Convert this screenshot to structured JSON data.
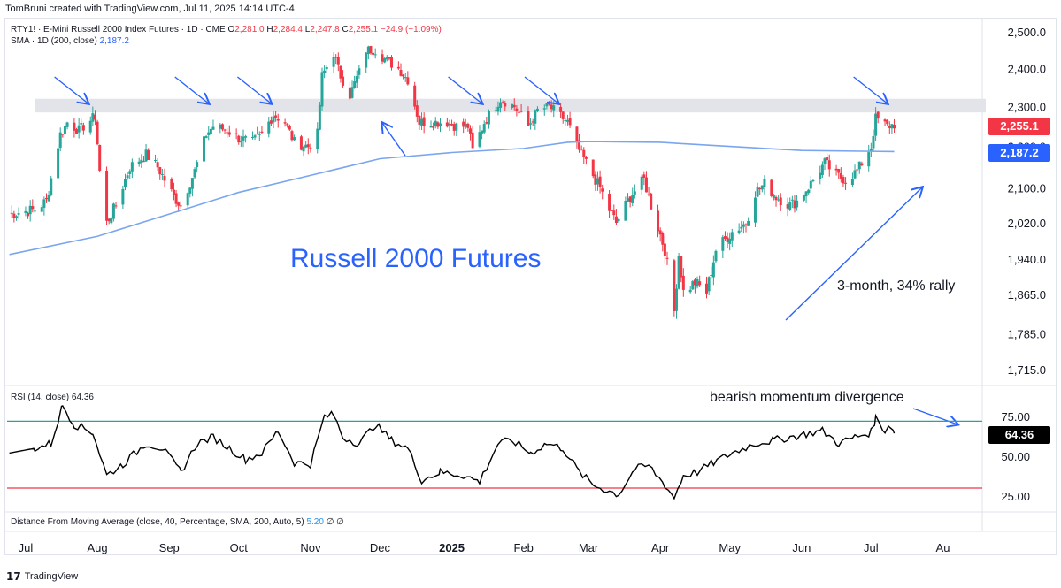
{
  "header": {
    "credit": "TomBruni created with TradingView.com, Jul 11, 2025 14:14 UTC-4"
  },
  "legend": {
    "symbol": "RTY1! · E-Mini Russell 2000 Index Futures · 1D · CME",
    "o_label": "O",
    "o": "2,281.0",
    "h_label": "H",
    "h": "2,284.4",
    "l_label": "L",
    "l": "2,247.8",
    "c_label": "C",
    "c": "2,255.1",
    "change": "−24.9 (−1.09%)",
    "sma_label": "SMA · 1D (200, close)",
    "sma_value": "2,187.2",
    "rsi_label": "RSI (14, close)",
    "rsi_value": "64.36",
    "dma_label": "Distance From Moving Average (close, 40, Percentage, SMA, 200, Auto, 5)",
    "dma_value": "5.20",
    "dma_extra": "∅ ∅"
  },
  "price_tags": {
    "last": "2,255.1",
    "sma": "2,187.2",
    "rsi": "64.36"
  },
  "annotations": {
    "title": "Russell 2000 Futures",
    "rally": "3-month, 34% rally",
    "divergence": "bearish momentum divergence"
  },
  "footer": {
    "brand": "TradingView"
  },
  "colors": {
    "up": "#26a69a",
    "down": "#f23645",
    "sma": "#7aa5f0",
    "rsi_line": "#000000",
    "rsi_upper": "#26a69a",
    "rsi_lower": "#f23645",
    "annotation": "#2962ff",
    "resistance_band": "#e3e4ea"
  },
  "chart_data": [
    {
      "type": "candlestick",
      "title": "",
      "y_ticks": [
        "2,500.0",
        "2,400.0",
        "2,300.0",
        "2,200.0",
        "2,100.0",
        "2,020.0",
        "1,940.0",
        "1,865.0",
        "1,785.0",
        "1,715.0"
      ],
      "y_tick_values": [
        2500,
        2400,
        2300,
        2200,
        2100,
        2020,
        1940,
        1865,
        1785,
        1715
      ],
      "ylim": [
        1705,
        2525
      ],
      "x_ticks": [
        "Jul",
        "Aug",
        "Sep",
        "Oct",
        "Nov",
        "Dec",
        "2025",
        "Feb",
        "Mar",
        "Apr",
        "May",
        "Jun",
        "Jul",
        "Au"
      ],
      "x_tick_dates": [
        "2024-07-01",
        "2024-08-01",
        "2024-09-01",
        "2024-10-01",
        "2024-11-01",
        "2024-12-01",
        "2025-01-01",
        "2025-02-01",
        "2025-03-01",
        "2025-04-01",
        "2025-05-01",
        "2025-06-01",
        "2025-07-01",
        "2025-08-01"
      ],
      "bold_ticks": [
        "2025"
      ],
      "xlim": [
        "2024-06-23",
        "2025-08-18"
      ],
      "resistance_zone": [
        2285,
        2320
      ],
      "close_points": [
        [
          "2024-06-24",
          2040
        ],
        [
          "2024-07-05",
          2050
        ],
        [
          "2024-07-10",
          2070
        ],
        [
          "2024-07-16",
          2230
        ],
        [
          "2024-07-19",
          2260
        ],
        [
          "2024-07-24",
          2240
        ],
        [
          "2024-07-31",
          2275
        ],
        [
          "2024-08-02",
          2140
        ],
        [
          "2024-08-05",
          2020
        ],
        [
          "2024-08-09",
          2060
        ],
        [
          "2024-08-15",
          2150
        ],
        [
          "2024-08-22",
          2180
        ],
        [
          "2024-08-27",
          2150
        ],
        [
          "2024-09-03",
          2080
        ],
        [
          "2024-09-06",
          2060
        ],
        [
          "2024-09-12",
          2140
        ],
        [
          "2024-09-17",
          2230
        ],
        [
          "2024-09-20",
          2250
        ],
        [
          "2024-09-26",
          2240
        ],
        [
          "2024-10-01",
          2220
        ],
        [
          "2024-10-07",
          2210
        ],
        [
          "2024-10-11",
          2230
        ],
        [
          "2024-10-16",
          2280
        ],
        [
          "2024-10-21",
          2260
        ],
        [
          "2024-10-25",
          2210
        ],
        [
          "2024-10-31",
          2200
        ],
        [
          "2024-11-04",
          2230
        ],
        [
          "2024-11-06",
          2380
        ],
        [
          "2024-11-11",
          2440
        ],
        [
          "2024-11-14",
          2380
        ],
        [
          "2024-11-18",
          2330
        ],
        [
          "2024-11-22",
          2390
        ],
        [
          "2024-11-25",
          2450
        ],
        [
          "2024-11-29",
          2450
        ],
        [
          "2024-12-04",
          2420
        ],
        [
          "2024-12-09",
          2400
        ],
        [
          "2024-12-13",
          2370
        ],
        [
          "2024-12-18",
          2260
        ],
        [
          "2024-12-23",
          2260
        ],
        [
          "2024-12-30",
          2260
        ],
        [
          "2025-01-03",
          2250
        ],
        [
          "2025-01-08",
          2250
        ],
        [
          "2025-01-10",
          2190
        ],
        [
          "2025-01-15",
          2260
        ],
        [
          "2025-01-22",
          2320
        ],
        [
          "2025-01-28",
          2300
        ],
        [
          "2025-02-03",
          2250
        ],
        [
          "2025-02-07",
          2290
        ],
        [
          "2025-02-12",
          2300
        ],
        [
          "2025-02-14",
          2290
        ],
        [
          "2025-02-20",
          2260
        ],
        [
          "2025-02-24",
          2200
        ],
        [
          "2025-02-28",
          2160
        ],
        [
          "2025-03-06",
          2100
        ],
        [
          "2025-03-10",
          2050
        ],
        [
          "2025-03-13",
          2020
        ],
        [
          "2025-03-19",
          2080
        ],
        [
          "2025-03-25",
          2120
        ],
        [
          "2025-03-28",
          2060
        ],
        [
          "2025-04-03",
          1960
        ],
        [
          "2025-04-07",
          1830
        ],
        [
          "2025-04-09",
          1950
        ],
        [
          "2025-04-11",
          1870
        ],
        [
          "2025-04-16",
          1890
        ],
        [
          "2025-04-21",
          1870
        ],
        [
          "2025-04-25",
          1960
        ],
        [
          "2025-05-02",
          2000
        ],
        [
          "2025-05-08",
          2020
        ],
        [
          "2025-05-12",
          2090
        ],
        [
          "2025-05-16",
          2110
        ],
        [
          "2025-05-21",
          2080
        ],
        [
          "2025-05-27",
          2060
        ],
        [
          "2025-05-30",
          2070
        ],
        [
          "2025-06-05",
          2110
        ],
        [
          "2025-06-11",
          2160
        ],
        [
          "2025-06-16",
          2130
        ],
        [
          "2025-06-20",
          2120
        ],
        [
          "2025-06-25",
          2140
        ],
        [
          "2025-07-01",
          2200
        ],
        [
          "2025-07-03",
          2270
        ],
        [
          "2025-07-08",
          2250
        ],
        [
          "2025-07-11",
          2255
        ]
      ],
      "series": [
        {
          "name": "SMA · 1D (200, close)",
          "type": "line",
          "points": [
            [
              "2024-06-24",
              1950
            ],
            [
              "2024-08-01",
              1990
            ],
            [
              "2024-09-01",
              2040
            ],
            [
              "2024-10-01",
              2090
            ],
            [
              "2024-11-01",
              2130
            ],
            [
              "2024-12-01",
              2170
            ],
            [
              "2025-01-01",
              2185
            ],
            [
              "2025-02-01",
              2195
            ],
            [
              "2025-02-20",
              2210
            ],
            [
              "2025-03-01",
              2212
            ],
            [
              "2025-04-01",
              2210
            ],
            [
              "2025-05-01",
              2200
            ],
            [
              "2025-06-01",
              2190
            ],
            [
              "2025-07-01",
              2188
            ],
            [
              "2025-07-11",
              2187.2
            ]
          ]
        }
      ],
      "arrows_down": [
        "2024-07-28",
        "2024-09-18",
        "2024-10-15",
        "2025-01-14",
        "2025-02-16",
        "2025-07-08"
      ],
      "arrow_up_label_point": [
        "2024-11-25",
        2200
      ]
    },
    {
      "type": "line",
      "title": "",
      "y_ticks": [
        "75.00",
        "50.00",
        "25.00"
      ],
      "y_tick_values": [
        75,
        50,
        25
      ],
      "ylim": [
        20,
        90
      ],
      "reference_lines": [
        72,
        30
      ],
      "series": [
        {
          "name": "RSI (14, close)",
          "points": [
            [
              "2024-06-24",
              52
            ],
            [
              "2024-07-05",
              55
            ],
            [
              "2024-07-12",
              58
            ],
            [
              "2024-07-17",
              82
            ],
            [
              "2024-07-22",
              70
            ],
            [
              "2024-07-30",
              65
            ],
            [
              "2024-08-05",
              38
            ],
            [
              "2024-08-12",
              45
            ],
            [
              "2024-08-22",
              58
            ],
            [
              "2024-08-29",
              55
            ],
            [
              "2024-09-06",
              40
            ],
            [
              "2024-09-13",
              58
            ],
            [
              "2024-09-20",
              62
            ],
            [
              "2024-09-27",
              55
            ],
            [
              "2024-10-04",
              48
            ],
            [
              "2024-10-11",
              52
            ],
            [
              "2024-10-18",
              66
            ],
            [
              "2024-10-25",
              46
            ],
            [
              "2024-11-01",
              45
            ],
            [
              "2024-11-07",
              75
            ],
            [
              "2024-11-11",
              76
            ],
            [
              "2024-11-15",
              62
            ],
            [
              "2024-11-22",
              58
            ],
            [
              "2024-11-29",
              70
            ],
            [
              "2024-12-06",
              60
            ],
            [
              "2024-12-13",
              55
            ],
            [
              "2024-12-19",
              35
            ],
            [
              "2024-12-27",
              40
            ],
            [
              "2025-01-06",
              38
            ],
            [
              "2025-01-13",
              34
            ],
            [
              "2025-01-21",
              58
            ],
            [
              "2025-01-27",
              60
            ],
            [
              "2025-02-04",
              52
            ],
            [
              "2025-02-11",
              58
            ],
            [
              "2025-02-18",
              55
            ],
            [
              "2025-02-25",
              40
            ],
            [
              "2025-03-03",
              32
            ],
            [
              "2025-03-10",
              28
            ],
            [
              "2025-03-14",
              26
            ],
            [
              "2025-03-21",
              42
            ],
            [
              "2025-03-27",
              44
            ],
            [
              "2025-04-03",
              32
            ],
            [
              "2025-04-07",
              24
            ],
            [
              "2025-04-11",
              38
            ],
            [
              "2025-04-17",
              40
            ],
            [
              "2025-04-24",
              46
            ],
            [
              "2025-05-02",
              52
            ],
            [
              "2025-05-12",
              58
            ],
            [
              "2025-05-20",
              60
            ],
            [
              "2025-05-27",
              62
            ],
            [
              "2025-06-03",
              64
            ],
            [
              "2025-06-10",
              66
            ],
            [
              "2025-06-17",
              58
            ],
            [
              "2025-06-24",
              62
            ],
            [
              "2025-07-01",
              65
            ],
            [
              "2025-07-03",
              74
            ],
            [
              "2025-07-07",
              66
            ],
            [
              "2025-07-09",
              70
            ],
            [
              "2025-07-11",
              64.36
            ]
          ]
        }
      ]
    }
  ]
}
